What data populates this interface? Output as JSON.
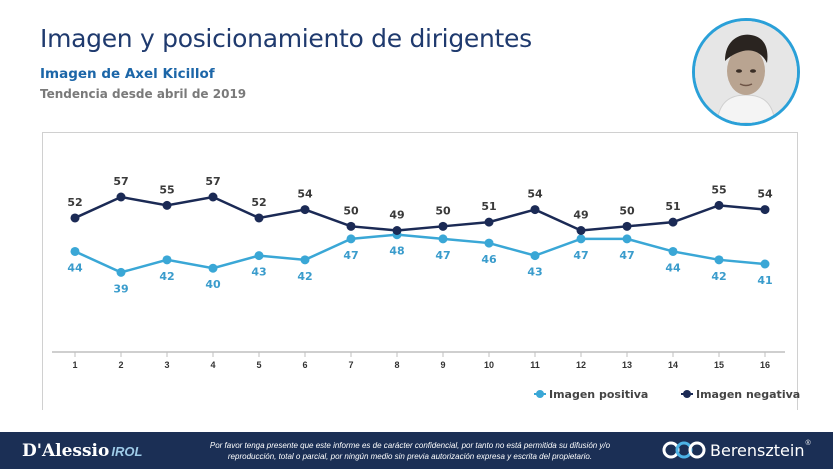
{
  "header": {
    "title": "Imagen y posicionamiento de dirigentes",
    "subtitle": "Imagen de Axel Kicillof",
    "note": "Tendencia desde abril de 2019"
  },
  "footer": {
    "logo_left": "D'Alessio",
    "logo_left_suffix": "IROL",
    "disclaimer": "Por favor tenga presente que este informe es de carácter confidencial, por tanto no está permitida su difusión y/o reproducción, total o parcial, por ningún medio sin previa autorización expresa y escrita del propietario.",
    "logo_right": "Berensztein",
    "logo_right_mark": "®"
  },
  "colors": {
    "positiva": "#3aa7d6",
    "negativa": "#1b2a55",
    "title": "#1f3a6e",
    "footer_bg": "#1b2f55"
  },
  "chart_data": {
    "type": "line",
    "categories": [
      "1",
      "2",
      "3",
      "4",
      "5",
      "6",
      "7",
      "8",
      "9",
      "10",
      "11",
      "12",
      "13",
      "14",
      "15",
      "16"
    ],
    "series": [
      {
        "name": "Imagen positiva",
        "values": [
          44,
          39,
          42,
          40,
          43,
          42,
          47,
          48,
          47,
          46,
          43,
          47,
          47,
          44,
          42,
          41
        ]
      },
      {
        "name": "Imagen negativa",
        "values": [
          52,
          57,
          55,
          57,
          52,
          54,
          50,
          49,
          50,
          51,
          54,
          49,
          50,
          51,
          55,
          54
        ]
      }
    ],
    "legend_position": "bottom-right",
    "grid": false
  }
}
